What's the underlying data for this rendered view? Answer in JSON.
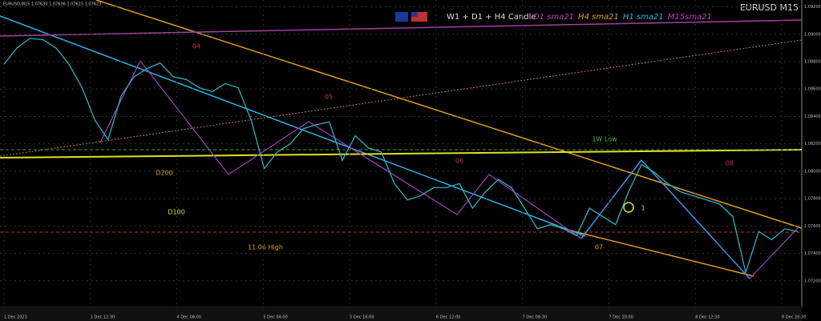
{
  "chart_data": {
    "type": "line",
    "symbol_title": "EURUSD M15",
    "info_line": "EURUSD,M15  1.07630 1.07636 1.07615 1.07623",
    "header": "W1 + D1 + H4 Candle",
    "sma_legend": [
      {
        "text": "D1 sma21",
        "color": "#c040c0"
      },
      {
        "text": "H4 sma21",
        "color": "#e0a020"
      },
      {
        "text": "H1 sma21",
        "color": "#30b0e0"
      },
      {
        "text": "M15sma21",
        "color": "#c040c0"
      }
    ],
    "annotations": [
      {
        "text": "04",
        "color": "#d03050"
      },
      {
        "text": "05",
        "color": "#d03050"
      },
      {
        "text": "06",
        "color": "#d03050"
      },
      {
        "text": "07",
        "color": "#e0a020"
      },
      {
        "text": "08",
        "color": "#d03050"
      },
      {
        "text": "1W Low",
        "color": "#40c040"
      },
      {
        "text": "D200",
        "color": "#e0a020"
      },
      {
        "text": "D100",
        "color": "#e0e020"
      },
      {
        "text": "11.06 High",
        "color": "#e0a020"
      },
      {
        "text": "1",
        "color": "#e0e020"
      }
    ],
    "series": [
      {
        "name": "EURUSD",
        "color": "#30b0c0",
        "values": [
          1.0878,
          1.089,
          1.0897,
          1.0896,
          1.089,
          1.0878,
          1.0861,
          1.0837,
          1.0823,
          1.0855,
          1.0869,
          1.0875,
          1.0879,
          1.0869,
          1.0867,
          1.0861,
          1.0858,
          1.0864,
          1.0861,
          1.0837,
          1.0802,
          1.0814,
          1.082,
          1.0831,
          1.0834,
          1.0836,
          1.0808,
          1.0826,
          1.0817,
          1.0814,
          1.0791,
          1.0779,
          1.0782,
          1.0788,
          1.0788,
          1.0791,
          1.0773,
          1.0785,
          1.0794,
          1.0788,
          1.0773,
          1.0758,
          1.0761,
          1.0758,
          1.0753,
          1.0773,
          1.0767,
          1.0761,
          1.0785,
          1.0805,
          1.0799,
          1.0791,
          1.0785,
          1.0782,
          1.0779,
          1.0776,
          1.0767,
          1.0726,
          1.0756,
          1.075,
          1.0758,
          1.0756
        ]
      }
    ],
    "x_axis_labels": [
      "1 Dec 2023",
      "1 Dec 12:30",
      "4 Dec 08:00",
      "5 Dec 04:00",
      "5 Dec 16:00",
      "6 Dec 12:00",
      "7 Dec 08:30",
      "7 Dec 20:00",
      "8 Dec 12:30",
      "8 Dec 20:30"
    ],
    "ylim": [
      1.07,
      1.0925
    ],
    "yticks": [
      {
        "value": 1.072,
        "label": "1.07200"
      },
      {
        "value": 1.074,
        "label": "1.07400"
      },
      {
        "value": 1.076,
        "label": "1.07600"
      },
      {
        "value": 1.078,
        "label": "1.07800"
      },
      {
        "value": 1.08,
        "label": "1.08000"
      },
      {
        "value": 1.082,
        "label": "1.08200"
      },
      {
        "value": 1.084,
        "label": "1.08400"
      },
      {
        "value": 1.086,
        "label": "1.08600"
      },
      {
        "value": 1.088,
        "label": "1.08800"
      },
      {
        "value": 1.09,
        "label": "1.09000"
      },
      {
        "value": 1.092,
        "label": "1.09200"
      }
    ],
    "grid": true
  }
}
